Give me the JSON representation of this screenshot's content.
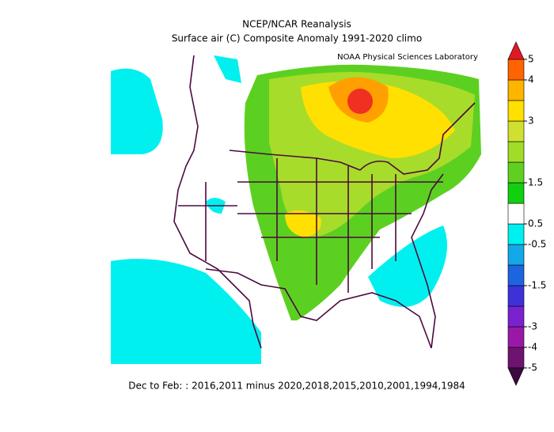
{
  "title": "NCEP/NCAR Reanalysis",
  "subtitle": "Surface air (C) Composite Anomaly 1991-2020 climo",
  "credit": "NOAA Physical Sciences Laboratory",
  "footer": "Dec to Feb: : 2016,2011 minus 2020,2018,2015,2010,2001,1994,1984",
  "colorbar": {
    "levels": [
      -5,
      -4,
      -3,
      -2,
      -1.5,
      -1,
      -0.5,
      0.5,
      1,
      1.5,
      2,
      2.5,
      3,
      3.5,
      4,
      5
    ],
    "colors": [
      "#6e1470",
      "#9a18a8",
      "#7a22d0",
      "#3c32d8",
      "#1c64e0",
      "#14a8e8",
      "#00f0f0",
      "#ffffff",
      "#10d010",
      "#60d020",
      "#a0dc28",
      "#d0e030",
      "#ffe000",
      "#ffb400",
      "#ff6400"
    ],
    "under_color": "#3c0a3c",
    "over_color": "#e01a22",
    "ticks": [
      5,
      4,
      3,
      1.5,
      0.5,
      -0.5,
      -1.5,
      -3,
      -4,
      -5
    ]
  }
}
